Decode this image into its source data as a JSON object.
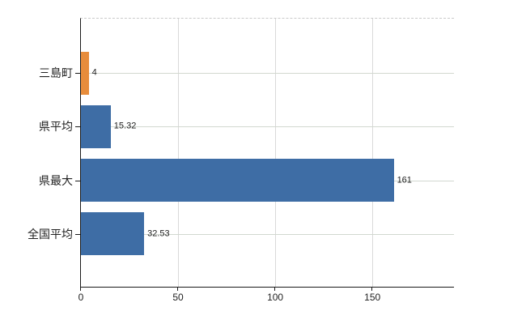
{
  "chart_data": {
    "type": "bar",
    "orientation": "horizontal",
    "title": "",
    "xlabel": "",
    "ylabel": "",
    "categories": [
      "三島町",
      "県平均",
      "県最大",
      "全国平均"
    ],
    "values": [
      4,
      15.32,
      161,
      32.53
    ],
    "value_labels": [
      "4",
      "15.32",
      "161",
      "32.53"
    ],
    "bar_colors": [
      "#e78c3b",
      "#3e6da5",
      "#3e6da5",
      "#3e6da5"
    ],
    "x_tick_labels": [
      "0",
      "50",
      "100",
      "150"
    ],
    "x_tick_values": [
      0,
      50,
      100,
      150
    ],
    "xlim": [
      0,
      192
    ],
    "grid": true,
    "legend_position": "none"
  },
  "colors": {
    "highlight_bar": "#e78c3b",
    "default_bar": "#3e6da5",
    "axis_line": "#1a1a1a",
    "horizontal_gridline": "#d2d8d0",
    "vertical_gridline": "#d9d9d9",
    "plot_top_border": "#c9c9c9",
    "text": "#222222",
    "background": "#ffffff"
  }
}
